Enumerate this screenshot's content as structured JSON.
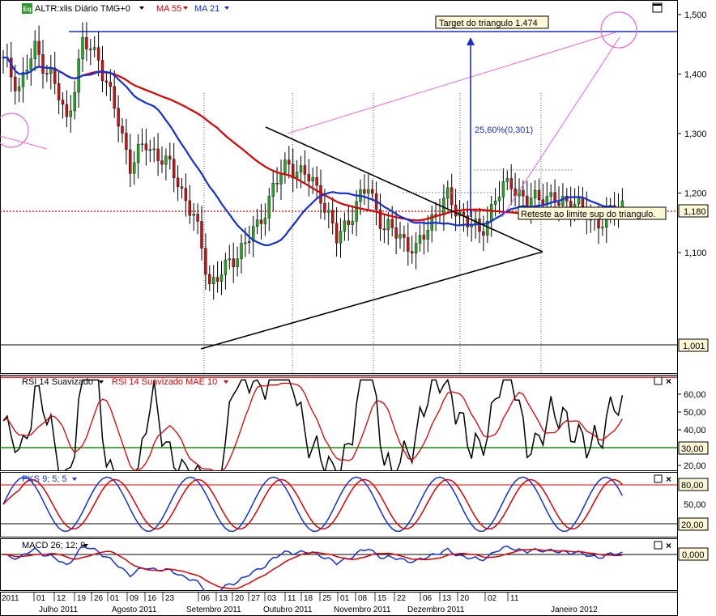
{
  "chart_data": [
    {
      "type": "candlestick",
      "panel": "price",
      "header": {
        "symbol_badge": "Eq",
        "title": "ALTR:xlis Diário TMG+0",
        "indicators": [
          {
            "label": "MA 55",
            "color": "#e00000"
          },
          {
            "label": "MA 21",
            "color": "#1030e0"
          }
        ]
      },
      "ylim": [
        0.96,
        1.52
      ],
      "y_ticks": [
        "1,500",
        "1,400",
        "1,300",
        "1,200",
        "1,100"
      ],
      "last_price_label": "1,180",
      "support_label": "1,001",
      "target_value": 1.474,
      "last_price": 1.18,
      "support_value": 1.001,
      "annotations": {
        "target": "Target do triangulo  1.474",
        "measure": "25,60%(0,301)",
        "retest": "Reteste ao limite sup do triangulo."
      },
      "ma55_color": "#e00000",
      "ma21_color": "#1030e0",
      "up_color": "#22aa22",
      "down_color": "#cc1111"
    },
    {
      "type": "line",
      "panel": "rsi",
      "title": "RSI 14 Suavizado",
      "signal_title": "RSI 14 Suavizado MAE 10",
      "ylim": [
        14,
        70
      ],
      "y_ticks": [
        "60,00",
        "50,00",
        "40,00",
        "30,00",
        "20,00"
      ],
      "levels": [
        {
          "value": 70,
          "color": "#e00000"
        },
        {
          "value": 30,
          "color": "#109010"
        }
      ],
      "level_label": "30,00",
      "series_color": "#000000",
      "signal_color": "#e00000"
    },
    {
      "type": "line",
      "panel": "stochastic",
      "title": "PKS 9; 5; 5",
      "ylim": [
        0,
        100
      ],
      "y_ticks": [
        "50,00"
      ],
      "levels": [
        {
          "value": 80,
          "label": "80,00"
        },
        {
          "value": 20,
          "label": "20,00"
        }
      ],
      "series_color": "#1030e0",
      "signal_color": "#e00000"
    },
    {
      "type": "line",
      "panel": "macd",
      "title": "MACD 26; 12; 9",
      "zero_label": "0,000",
      "series_color": "#1030e0",
      "signal_color": "#e00000"
    }
  ],
  "x_axis": {
    "days": [
      "2011",
      "01",
      "12",
      "19",
      "26",
      "01",
      "09",
      "16",
      "23",
      "06",
      "13",
      "20",
      "27",
      "03",
      "11",
      "18",
      "25",
      "01",
      "08",
      "15",
      "22",
      "06",
      "13",
      "20",
      "02",
      "11"
    ],
    "months": [
      "Julho 2011",
      "Agosto 2011",
      "Setembro 2011",
      "Outubro 2011",
      "Novembro 2011",
      "Dezembro 2011",
      "Janeiro 2012"
    ]
  }
}
